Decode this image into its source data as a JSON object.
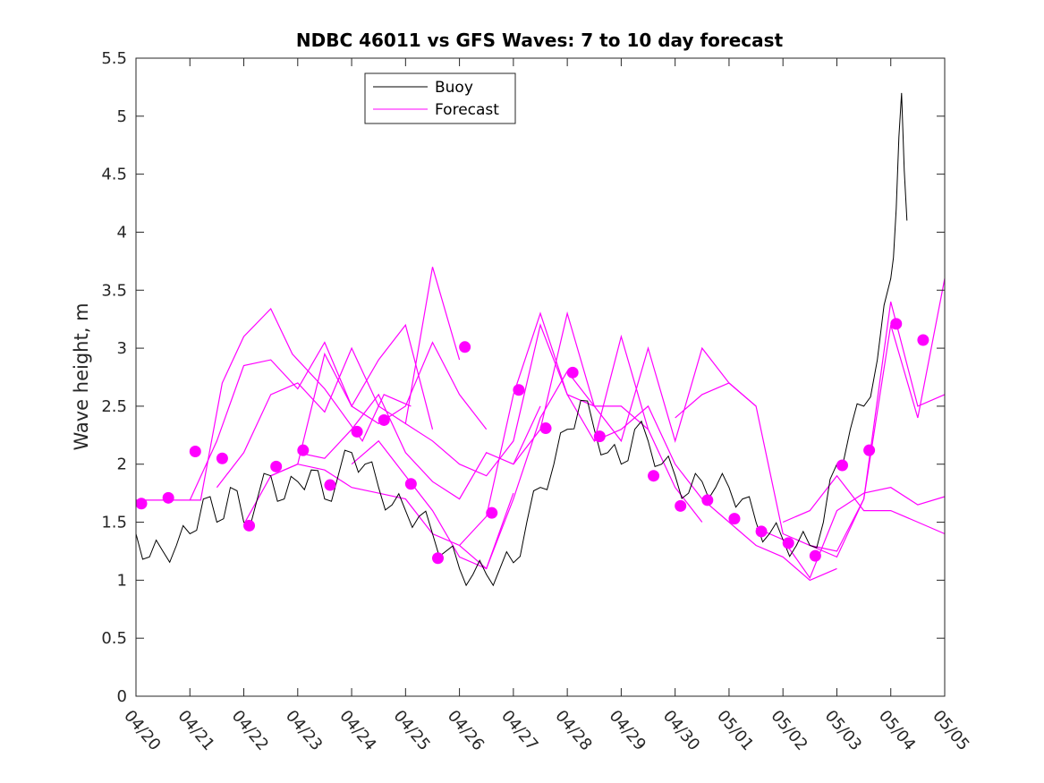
{
  "chart_data": {
    "type": "line",
    "title": "NDBC 46011 vs GFS Waves: 7 to 10 day forecast",
    "xlabel": "",
    "ylabel": "Wave height, m",
    "xlim": [
      0,
      15
    ],
    "ylim": [
      0,
      5.5
    ],
    "grid": false,
    "legend_position": "top-center",
    "x_tick_labels": [
      "04/20",
      "04/21",
      "04/22",
      "04/23",
      "04/24",
      "04/25",
      "04/26",
      "04/27",
      "04/28",
      "04/29",
      "04/30",
      "05/01",
      "05/02",
      "05/03",
      "05/04",
      "05/05"
    ],
    "y_tick_labels": [
      "0",
      "0.5",
      "1",
      "1.5",
      "2",
      "2.5",
      "3",
      "3.5",
      "4",
      "4.5",
      "5",
      "5.5"
    ],
    "colors": {
      "buoy": "#000000",
      "forecast": "#ff00ff"
    },
    "series": [
      {
        "name": "Buoy",
        "x": [
          0,
          0.25,
          0.5,
          0.75,
          1,
          1.25,
          1.5,
          1.75,
          2,
          2.25,
          2.5,
          2.75,
          3,
          3.25,
          3.5,
          3.75,
          4,
          4.25,
          4.5,
          4.75,
          5,
          5.25,
          5.5,
          5.75,
          6,
          6.25,
          6.5,
          6.75,
          7,
          7.25,
          7.5,
          7.75,
          8,
          8.25,
          8.5,
          8.75,
          9,
          9.25,
          9.5,
          9.75,
          10,
          10.25,
          10.5,
          10.75,
          11,
          11.25,
          11.5,
          11.75,
          12,
          12.25,
          12.5,
          12.75,
          13,
          13.25,
          13.5,
          13.75,
          14,
          14.1,
          14.2,
          14.3
        ],
        "y": [
          1.4,
          1.2,
          1.25,
          1.3,
          1.4,
          1.7,
          1.5,
          1.8,
          1.5,
          1.7,
          1.9,
          1.7,
          1.85,
          1.95,
          1.7,
          1.9,
          2.1,
          2.0,
          1.8,
          1.65,
          1.6,
          1.55,
          1.4,
          1.25,
          1.1,
          1.05,
          1.05,
          1.1,
          1.15,
          1.5,
          1.8,
          2.0,
          2.3,
          2.55,
          2.3,
          2.1,
          2.0,
          2.3,
          2.2,
          2.0,
          1.9,
          1.75,
          1.85,
          1.8,
          1.8,
          1.7,
          1.5,
          1.4,
          1.35,
          1.3,
          1.3,
          1.5,
          2.0,
          2.3,
          2.5,
          2.9,
          3.6,
          4.2,
          5.2,
          4.1
        ]
      },
      {
        "name": "Forecast",
        "markers": {
          "x": [
            0.1,
            0.6,
            1.1,
            1.6,
            2.1,
            2.6,
            3.1,
            3.6,
            4.1,
            4.6,
            5.1,
            5.6,
            6.1,
            6.6,
            7.1,
            7.6,
            8.1,
            8.6,
            9.6,
            10.1,
            10.6,
            11.1,
            11.6,
            12.1,
            12.6,
            13.1,
            13.6,
            14.1,
            14.6
          ],
          "y": [
            1.66,
            1.71,
            2.11,
            2.05,
            1.47,
            1.98,
            2.12,
            1.82,
            2.28,
            2.38,
            1.83,
            1.19,
            3.01,
            1.58,
            2.64,
            2.31,
            2.79,
            2.24,
            1.9,
            1.64,
            1.69,
            1.53,
            1.42,
            1.32,
            1.21,
            1.99,
            2.12,
            3.21,
            3.07
          ]
        }
      }
    ],
    "forecast_runs": [
      {
        "x": [
          0,
          1.2,
          1.6,
          2.0,
          2.5,
          2.9,
          3.5,
          4.2,
          4.6,
          5.1
        ],
        "y": [
          1.69,
          1.69,
          2.7,
          3.1,
          3.34,
          2.95,
          2.65,
          2.2,
          2.6,
          2.5
        ]
      },
      {
        "x": [
          1.0,
          1.5,
          2.0,
          2.5,
          3.0,
          3.5,
          4.0,
          4.5,
          5.0,
          5.5
        ],
        "y": [
          1.69,
          2.2,
          2.85,
          2.9,
          2.65,
          3.05,
          2.5,
          2.9,
          3.2,
          2.3
        ]
      },
      {
        "x": [
          1.5,
          2.0,
          2.5,
          3.0,
          3.5,
          4.0,
          4.5,
          5.0,
          5.5,
          6.0
        ],
        "y": [
          1.8,
          2.1,
          2.6,
          2.7,
          2.45,
          3.0,
          2.5,
          2.35,
          3.7,
          2.9
        ]
      },
      {
        "x": [
          2.0,
          2.5,
          3.0,
          3.5,
          4.0,
          4.5,
          5.0,
          5.5,
          6.0,
          6.5
        ],
        "y": [
          1.48,
          1.9,
          2.0,
          2.95,
          2.5,
          2.35,
          2.5,
          3.05,
          2.6,
          2.3
        ]
      },
      {
        "x": [
          2.5,
          3.0,
          3.5,
          4.0,
          4.5,
          5.0,
          5.5,
          6.0,
          6.5,
          7.0
        ],
        "y": [
          1.9,
          2.0,
          1.95,
          1.8,
          1.75,
          1.7,
          1.4,
          1.3,
          1.1,
          1.75
        ]
      },
      {
        "x": [
          3.0,
          3.5,
          4.0,
          4.5,
          5.0,
          5.5,
          6.0,
          6.5,
          7.0,
          7.5
        ],
        "y": [
          2.1,
          2.05,
          2.3,
          2.6,
          2.1,
          1.85,
          1.7,
          2.1,
          2.0,
          2.5
        ]
      },
      {
        "x": [
          4.0,
          4.5,
          5.0,
          5.5,
          6.0,
          6.5,
          7.0,
          7.5,
          8.0,
          8.5
        ],
        "y": [
          2.0,
          2.2,
          1.9,
          1.6,
          1.2,
          1.1,
          1.7,
          2.4,
          2.8,
          2.5
        ]
      },
      {
        "x": [
          5.0,
          5.5,
          6.0,
          6.5,
          7.0,
          7.5,
          8.0,
          8.5,
          9.0,
          9.5
        ],
        "y": [
          2.35,
          2.2,
          2.0,
          1.9,
          2.2,
          3.2,
          2.6,
          2.5,
          2.5,
          2.3
        ]
      },
      {
        "x": [
          6.0,
          6.5,
          7.0,
          7.5,
          8.0,
          8.5,
          9.0,
          9.5,
          10.0,
          10.5
        ],
        "y": [
          1.3,
          1.55,
          2.6,
          3.3,
          2.6,
          2.2,
          3.1,
          2.3,
          1.8,
          1.5
        ]
      },
      {
        "x": [
          7.0,
          7.5,
          8.0,
          8.5,
          9.0,
          9.5,
          10.0,
          10.5,
          11.0,
          11.5
        ],
        "y": [
          2.0,
          2.3,
          3.3,
          2.5,
          2.2,
          3.0,
          2.2,
          3.0,
          2.7,
          2.5
        ]
      },
      {
        "x": [
          8.5,
          9.0,
          9.5,
          10.0,
          10.5,
          11.0,
          11.5,
          12.0,
          12.5,
          13.0
        ],
        "y": [
          2.2,
          2.3,
          2.5,
          2.0,
          1.7,
          1.5,
          1.3,
          1.2,
          1.0,
          1.1
        ]
      },
      {
        "x": [
          10.0,
          10.5,
          11.0,
          11.5,
          12.0,
          12.5,
          13.0,
          13.5,
          14.0,
          14.5,
          15.0
        ],
        "y": [
          2.4,
          2.6,
          2.7,
          2.5,
          1.4,
          1.3,
          1.25,
          1.7,
          3.2,
          2.4,
          3.6
        ]
      },
      {
        "x": [
          11.5,
          12.0,
          12.5,
          13.0,
          13.5,
          14.0,
          14.5,
          15.0
        ],
        "y": [
          1.45,
          1.35,
          1.02,
          1.6,
          1.75,
          1.8,
          1.65,
          1.72
        ]
      },
      {
        "x": [
          12.0,
          12.5,
          13.0,
          13.5,
          14.0,
          14.5,
          15.0
        ],
        "y": [
          1.5,
          1.6,
          1.9,
          1.6,
          1.6,
          1.5,
          1.4
        ]
      },
      {
        "x": [
          12.5,
          13.0,
          13.5,
          14.0,
          14.5,
          15.0
        ],
        "y": [
          1.3,
          1.2,
          1.7,
          3.4,
          2.5,
          2.6
        ]
      }
    ]
  }
}
